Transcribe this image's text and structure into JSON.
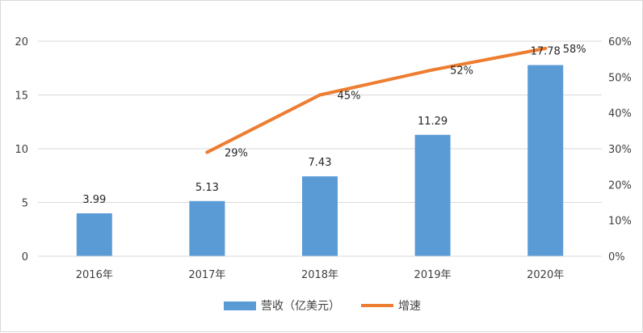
{
  "chart_data": {
    "type": "bar",
    "categories": [
      "2016年",
      "2017年",
      "2018年",
      "2019年",
      "2020年"
    ],
    "series": [
      {
        "name": "营收（亿美元）",
        "type": "bar",
        "axis": "left",
        "color": "#5b9bd5",
        "values": [
          3.99,
          5.13,
          7.43,
          11.29,
          17.78
        ],
        "labels": [
          "3.99",
          "5.13",
          "7.43",
          "11.29",
          "17.78"
        ]
      },
      {
        "name": "增速",
        "type": "line",
        "axis": "right",
        "color": "#ed7d31",
        "values": [
          null,
          29,
          45,
          52,
          58
        ],
        "labels": [
          "",
          "29%",
          "45%",
          "52%",
          "58%"
        ]
      }
    ],
    "y_left": {
      "min": 0,
      "max": 20,
      "ticks": [
        "0",
        "5",
        "10",
        "15",
        "20"
      ]
    },
    "y_right": {
      "min": 0,
      "max": 60,
      "ticks": [
        "0%",
        "10%",
        "20%",
        "30%",
        "40%",
        "50%",
        "60%"
      ]
    },
    "grid": true,
    "legend": "bottom"
  }
}
